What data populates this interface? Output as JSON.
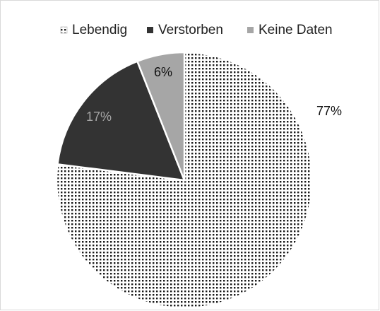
{
  "chart_data": {
    "type": "pie",
    "categories": [
      "Lebendig",
      "Verstorben",
      "Keine Daten"
    ],
    "values": [
      77,
      17,
      6
    ],
    "value_labels": [
      "77%",
      "17%",
      "6%"
    ],
    "colors": [
      "#1a1a1a",
      "#333333",
      "#a6a6a6"
    ],
    "patterns": [
      "dots",
      "solid",
      "solid"
    ],
    "legend": "top"
  }
}
